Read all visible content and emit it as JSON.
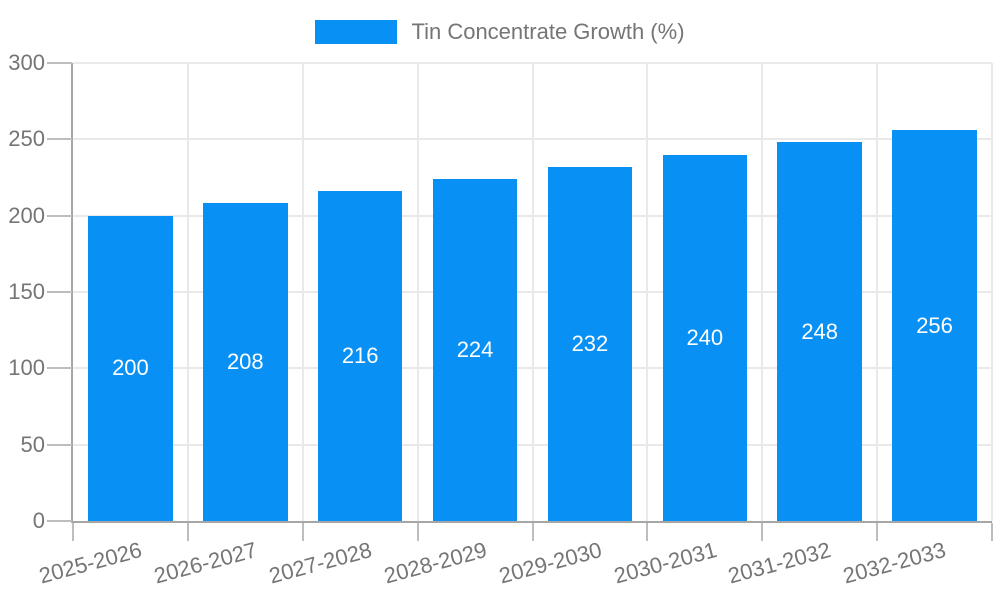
{
  "chart_data": {
    "type": "bar",
    "title": "",
    "legend": "Tin Concentrate Growth (%)",
    "legend_position": "top-center",
    "categories": [
      "2025-2026",
      "2026-2027",
      "2027-2028",
      "2028-2029",
      "2029-2030",
      "2030-2031",
      "2031-2032",
      "2032-2033"
    ],
    "values": [
      200,
      208,
      216,
      224,
      232,
      240,
      248,
      256
    ],
    "y_ticks": [
      0,
      50,
      100,
      150,
      200,
      250,
      300
    ],
    "ylim": [
      0,
      300
    ],
    "grid": "on",
    "value_labels": "inside-center",
    "colors": {
      "bar": "#0990F5",
      "bar_value_text": "#ffffff",
      "tick_text": "#757575",
      "legend_text": "#757575",
      "axis_line": "#a6a6a6",
      "gridline": "#e9e9e9",
      "tick_mark": "#bdbdbd",
      "background": "#ffffff"
    }
  }
}
